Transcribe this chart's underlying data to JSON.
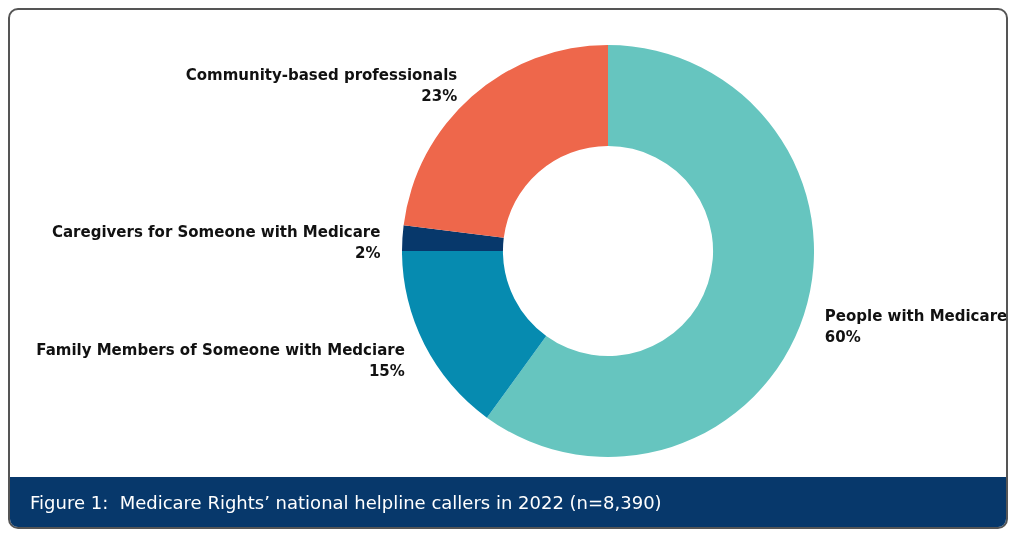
{
  "chart_data": {
    "type": "donut",
    "title": "Figure 1:  Medicare Rights’ national helpline callers in 2022 (n=8,390)",
    "categories": [
      "People with Medicare",
      "Family Members of Someone with Medciare",
      "Caregivers for Someone with Medicare",
      "Community-based professionals"
    ],
    "values": [
      60,
      15,
      2,
      23
    ],
    "value_labels": [
      "60%",
      "15%",
      "2%",
      "23%"
    ],
    "colors": [
      "#66c5bf",
      "#068bb0",
      "#07386b",
      "#ee674b"
    ],
    "legend": false
  }
}
